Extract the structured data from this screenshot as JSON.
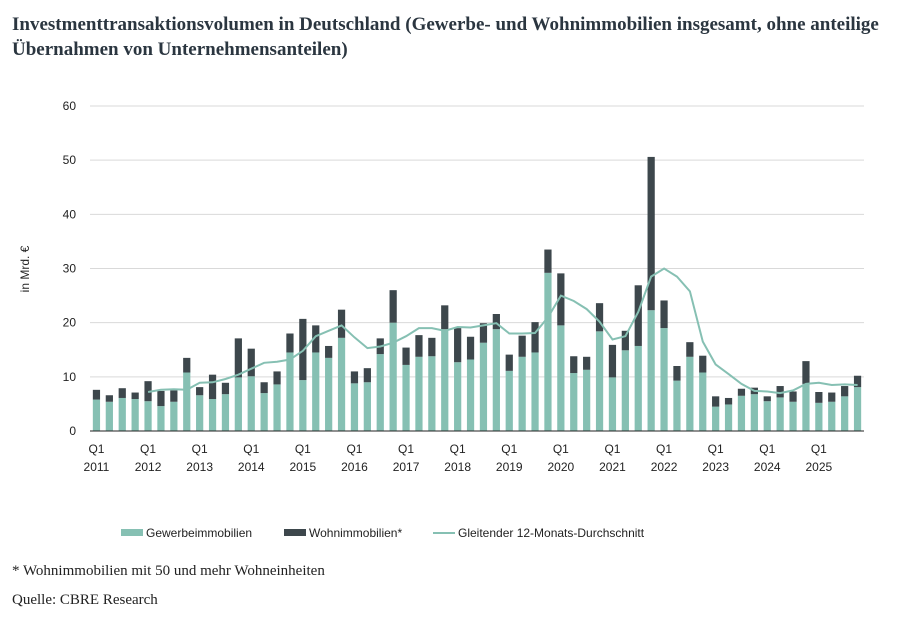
{
  "chart_data": {
    "type": "bar",
    "title": "Investmenttransaktionsvolumen in Deutschland (Gewerbe- und Wohnimmobilien insgesamt, ohne anteilige Übernahmen von Unternehmensanteilen)",
    "ylabel": "in Mrd. €",
    "ylim": [
      0,
      60
    ],
    "yticks": [
      "0",
      "10",
      "20",
      "30",
      "40",
      "50",
      "60"
    ],
    "x_tick_quarter_label": "Q1",
    "years": [
      "2011",
      "2012",
      "2013",
      "2014",
      "2015",
      "2016",
      "2017",
      "2018",
      "2019",
      "2020",
      "2021",
      "2022",
      "2023",
      "2024",
      "2025"
    ],
    "stacked": true,
    "series": [
      {
        "name": "Gewerbeimmobilien",
        "color": "#86c0b3",
        "values": [
          5.8,
          5.4,
          6.1,
          5.9,
          5.5,
          4.6,
          5.4,
          10.8,
          6.6,
          5.9,
          6.8,
          9.9,
          10.1,
          7.0,
          8.6,
          14.5,
          9.4,
          14.5,
          13.5,
          17.2,
          8.8,
          9.0,
          14.2,
          20.0,
          12.2,
          13.7,
          13.8,
          18.8,
          12.7,
          13.2,
          16.3,
          18.8,
          11.1,
          13.7,
          14.5,
          29.2,
          19.5,
          10.7,
          11.3,
          18.4,
          9.9,
          14.9,
          15.7,
          22.3,
          19.0,
          9.3,
          13.7,
          10.8,
          4.5,
          4.9,
          6.5,
          6.8,
          5.5,
          6.2,
          5.4,
          8.7,
          5.2,
          5.4,
          6.4,
          8.1
        ]
      },
      {
        "name": "Wohnimmobilien*",
        "color": "#3d474c",
        "values": [
          1.8,
          1.2,
          1.8,
          1.2,
          3.7,
          2.8,
          2.1,
          2.7,
          1.5,
          4.5,
          2.1,
          7.2,
          5.1,
          2.0,
          2.4,
          3.5,
          11.3,
          5.0,
          2.2,
          5.2,
          2.2,
          2.6,
          2.9,
          6.0,
          3.2,
          4.0,
          3.4,
          4.4,
          6.3,
          4.2,
          3.6,
          2.8,
          3.0,
          3.9,
          5.6,
          4.3,
          9.6,
          3.1,
          2.4,
          5.2,
          6.0,
          3.6,
          11.2,
          28.3,
          5.1,
          2.7,
          2.7,
          3.1,
          1.9,
          1.2,
          1.3,
          1.2,
          0.9,
          2.1,
          1.9,
          4.2,
          2.0,
          1.7,
          1.9,
          2.1
        ]
      },
      {
        "name": "Gleitender 12-Monats-Durchschnitt",
        "type": "line",
        "color": "#86c0b3",
        "values": [
          null,
          null,
          null,
          null,
          7.2,
          7.6,
          7.7,
          7.6,
          8.9,
          9.0,
          9.6,
          10.4,
          11.5,
          12.6,
          12.8,
          13.2,
          14.8,
          17.5,
          18.5,
          19.5,
          17.3,
          15.3,
          15.6,
          16.3,
          17.5,
          19.0,
          19.0,
          18.5,
          19.2,
          19.1,
          19.5,
          19.9,
          18.0,
          18.0,
          18.1,
          21.0,
          25.0,
          24.0,
          22.5,
          20.2,
          16.9,
          17.5,
          22.0,
          28.5,
          30.0,
          28.5,
          25.8,
          16.5,
          12.3,
          10.5,
          8.7,
          7.4,
          7.3,
          7.0,
          7.5,
          8.7,
          8.9,
          8.5,
          8.6,
          8.5
        ]
      }
    ],
    "legend_position": "bottom",
    "grid": true
  },
  "footnotes": {
    "note": "* Wohnimmobilien mit 50 und mehr Wohneinheiten",
    "source": "Quelle: CBRE Research"
  }
}
